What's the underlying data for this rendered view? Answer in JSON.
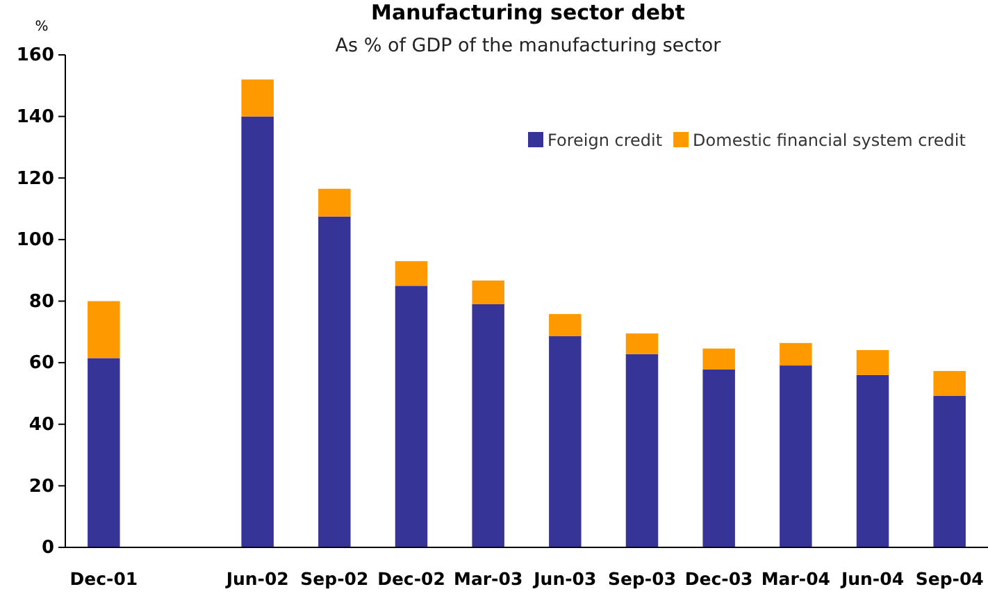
{
  "chart_data": {
    "type": "bar",
    "title": "Manufacturing sector debt",
    "subtitle": "As % of GDP of the manufacturing sector",
    "ylabel": "%",
    "categories": [
      "Dec-01",
      null,
      "Jun-02",
      "Sep-02",
      "Dec-02",
      "Mar-03",
      "Jun-03",
      "Sep-03",
      "Dec-03",
      "Mar-04",
      "Jun-04",
      "Sep-04"
    ],
    "series": [
      {
        "name": "Foreign credit",
        "color": "#363497",
        "values": [
          61.5,
          null,
          140,
          107.5,
          85,
          79,
          68.6,
          62.8,
          57.8,
          59.1,
          56,
          49.2
        ]
      },
      {
        "name": "Domestic financial system credit",
        "color": "#ff9900",
        "values": [
          18.5,
          null,
          12,
          9,
          8,
          7.7,
          7.2,
          6.7,
          6.8,
          7.3,
          8.1,
          8.1
        ]
      }
    ],
    "stacked": true,
    "ylim": [
      0,
      160
    ],
    "yticks": [
      0,
      20,
      40,
      60,
      80,
      100,
      120,
      140,
      160
    ],
    "grid": false,
    "legend": "top right"
  }
}
